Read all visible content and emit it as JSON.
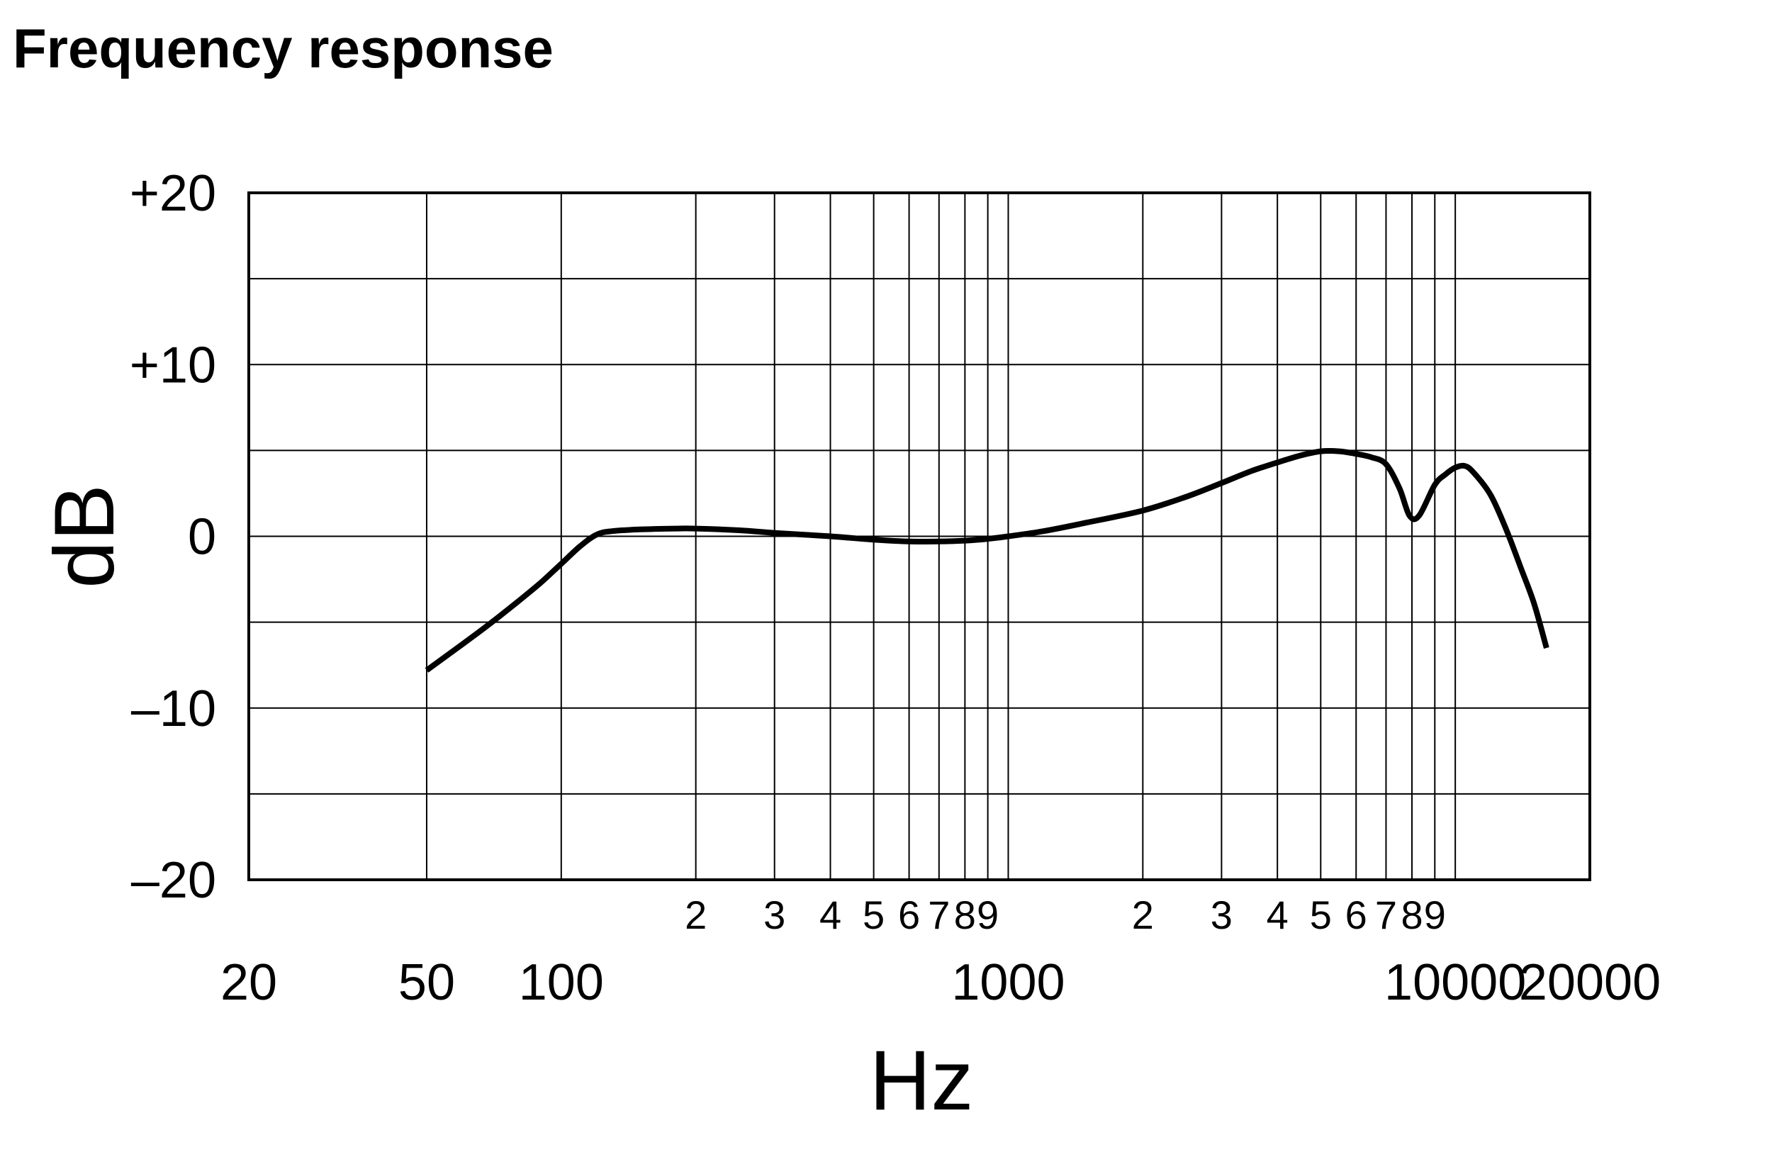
{
  "chart_data": {
    "type": "line",
    "title": "Frequency response",
    "xlabel": "Hz",
    "ylabel": "dB",
    "x_scale": "log",
    "xlim": [
      20,
      20000
    ],
    "ylim": [
      -20,
      20
    ],
    "grid": true,
    "y_ticks": [
      {
        "value": 20,
        "label": "+20"
      },
      {
        "value": 10,
        "label": "+10"
      },
      {
        "value": 0,
        "label": "0"
      },
      {
        "value": -10,
        "label": "–10"
      },
      {
        "value": -20,
        "label": "–20"
      }
    ],
    "y_gridlines": [
      20,
      15,
      10,
      5,
      0,
      -5,
      -10,
      -15,
      -20
    ],
    "x_major_ticks": [
      {
        "value": 20,
        "label": "20"
      },
      {
        "value": 50,
        "label": "50"
      },
      {
        "value": 100,
        "label": "100"
      },
      {
        "value": 1000,
        "label": "1000"
      },
      {
        "value": 10000,
        "label": "10000"
      },
      {
        "value": 20000,
        "label": "20000"
      }
    ],
    "x_minor_ticks": [
      {
        "value": 200,
        "label": "2"
      },
      {
        "value": 300,
        "label": "3"
      },
      {
        "value": 400,
        "label": "4"
      },
      {
        "value": 500,
        "label": "5"
      },
      {
        "value": 600,
        "label": "6"
      },
      {
        "value": 700,
        "label": "7"
      },
      {
        "value": 800,
        "label": "8"
      },
      {
        "value": 900,
        "label": "9"
      },
      {
        "value": 2000,
        "label": "2"
      },
      {
        "value": 3000,
        "label": "3"
      },
      {
        "value": 4000,
        "label": "4"
      },
      {
        "value": 5000,
        "label": "5"
      },
      {
        "value": 6000,
        "label": "6"
      },
      {
        "value": 7000,
        "label": "7"
      },
      {
        "value": 8000,
        "label": "8"
      },
      {
        "value": 9000,
        "label": "9"
      }
    ],
    "x_gridlines": [
      50,
      100,
      200,
      300,
      400,
      500,
      600,
      700,
      800,
      900,
      1000,
      2000,
      3000,
      4000,
      5000,
      6000,
      7000,
      8000,
      9000,
      10000
    ],
    "series": [
      {
        "points": [
          [
            50,
            -7.8
          ],
          [
            60,
            -6.3
          ],
          [
            70,
            -5.0
          ],
          [
            80,
            -3.8
          ],
          [
            90,
            -2.7
          ],
          [
            100,
            -1.6
          ],
          [
            110,
            -0.6
          ],
          [
            120,
            0.1
          ],
          [
            130,
            0.3
          ],
          [
            150,
            0.4
          ],
          [
            180,
            0.45
          ],
          [
            200,
            0.45
          ],
          [
            250,
            0.35
          ],
          [
            300,
            0.2
          ],
          [
            400,
            0.0
          ],
          [
            500,
            -0.2
          ],
          [
            600,
            -0.3
          ],
          [
            700,
            -0.3
          ],
          [
            800,
            -0.25
          ],
          [
            900,
            -0.15
          ],
          [
            1000,
            0.0
          ],
          [
            1200,
            0.3
          ],
          [
            1500,
            0.8
          ],
          [
            2000,
            1.5
          ],
          [
            2500,
            2.3
          ],
          [
            3000,
            3.1
          ],
          [
            3500,
            3.8
          ],
          [
            4000,
            4.3
          ],
          [
            4500,
            4.7
          ],
          [
            5000,
            4.95
          ],
          [
            5500,
            4.95
          ],
          [
            6000,
            4.8
          ],
          [
            6500,
            4.6
          ],
          [
            7000,
            4.2
          ],
          [
            7500,
            2.8
          ],
          [
            7900,
            1.2
          ],
          [
            8300,
            1.2
          ],
          [
            9000,
            3.0
          ],
          [
            9500,
            3.6
          ],
          [
            10000,
            4.0
          ],
          [
            10500,
            4.1
          ],
          [
            11000,
            3.7
          ],
          [
            12000,
            2.4
          ],
          [
            13000,
            0.4
          ],
          [
            14000,
            -1.8
          ],
          [
            15000,
            -3.9
          ],
          [
            16000,
            -6.5
          ]
        ]
      }
    ]
  }
}
